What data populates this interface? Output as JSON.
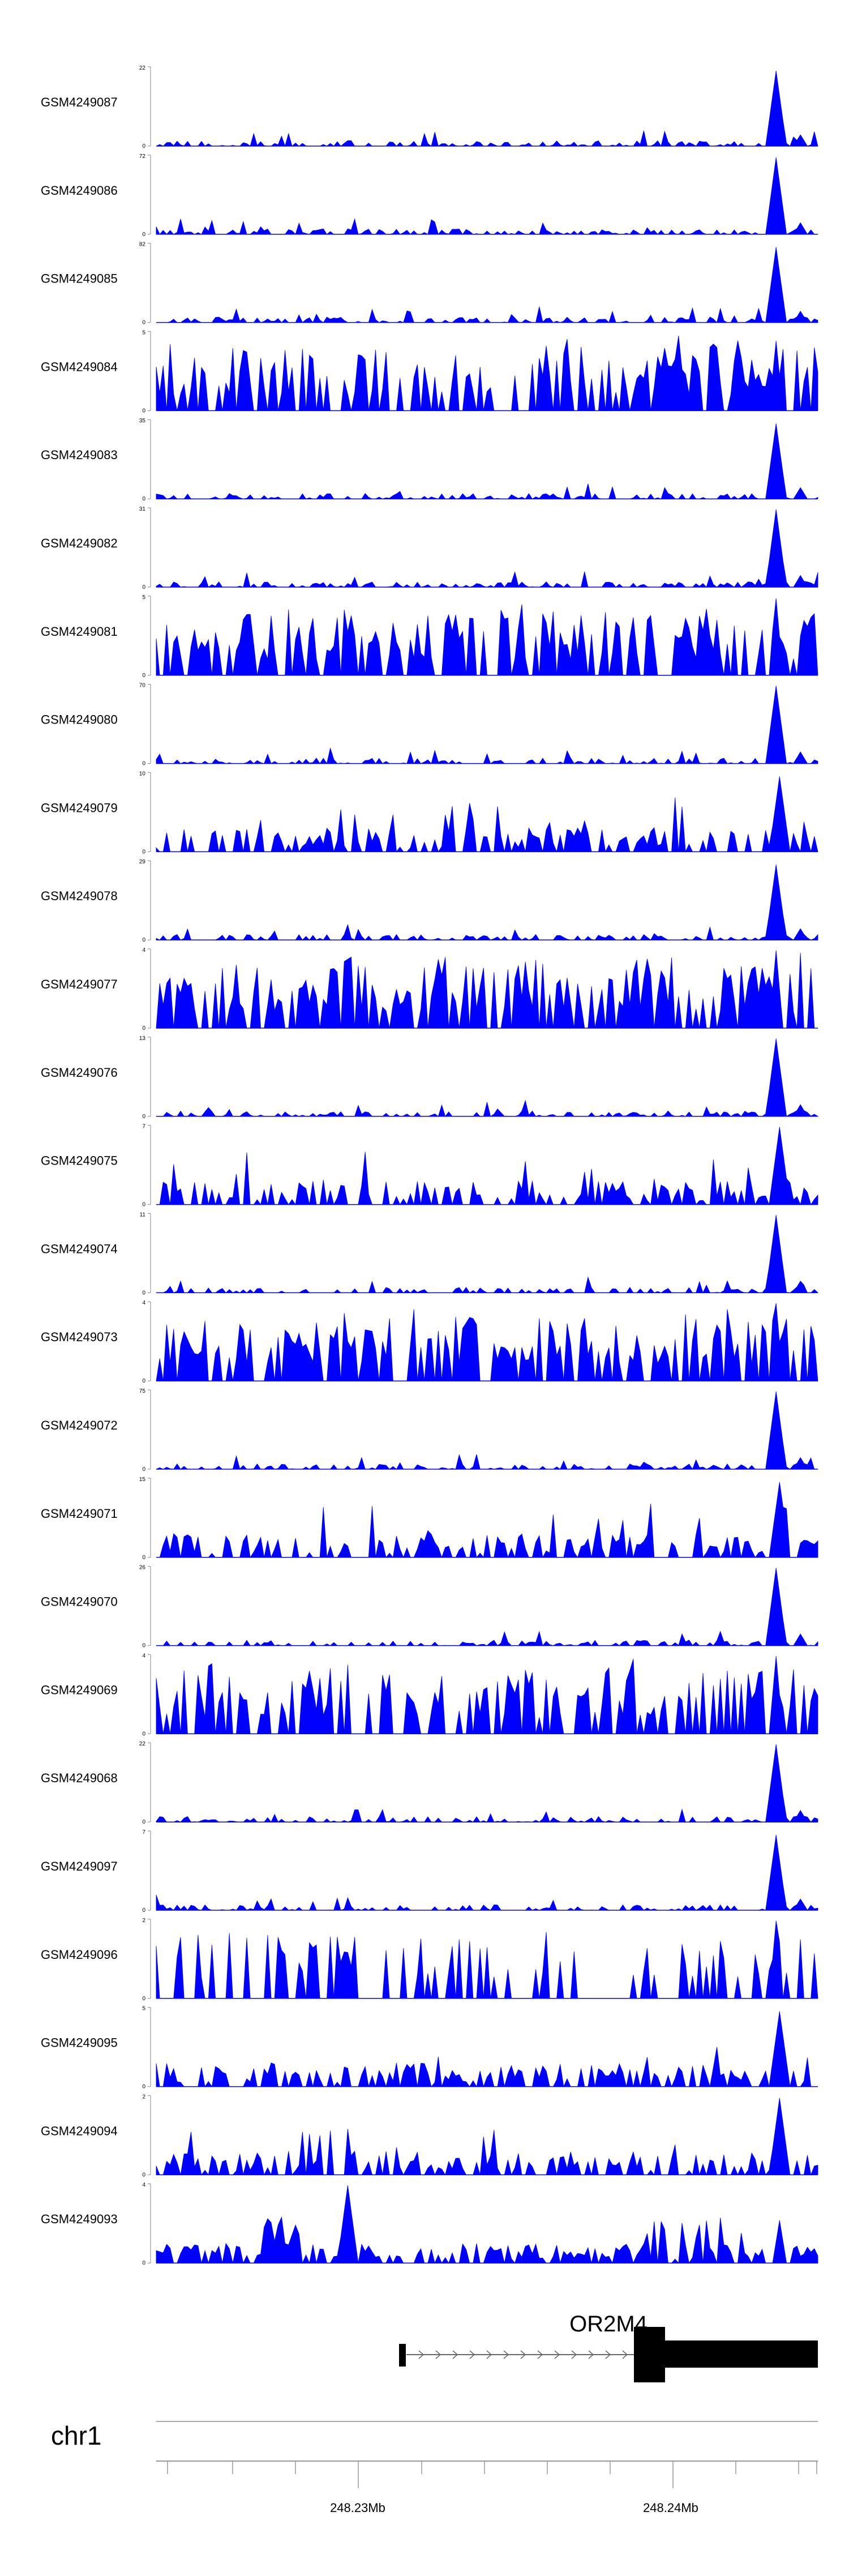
{
  "chart_data": {
    "type": "area",
    "tracks": [
      {
        "name": "GSM4249087",
        "ymax": "22",
        "ymin": "0",
        "peak_height_fraction": 0.95
      },
      {
        "name": "GSM4249086",
        "ymax": "72",
        "ymin": "0",
        "peak_height_fraction": 0.97
      },
      {
        "name": "GSM4249085",
        "ymax": "82",
        "ymin": "0",
        "peak_height_fraction": 0.95
      },
      {
        "name": "GSM4249084",
        "ymax": "5",
        "ymin": "0",
        "peak_height_fraction": 0.88
      },
      {
        "name": "GSM4249083",
        "ymax": "35",
        "ymin": "0",
        "peak_height_fraction": 0.95
      },
      {
        "name": "GSM4249082",
        "ymax": "31",
        "ymin": "0",
        "peak_height_fraction": 0.98
      },
      {
        "name": "GSM4249081",
        "ymax": "5",
        "ymin": "0",
        "peak_height_fraction": 0.97
      },
      {
        "name": "GSM4249080",
        "ymax": "70",
        "ymin": "0",
        "peak_height_fraction": 0.98
      },
      {
        "name": "GSM4249079",
        "ymax": "10",
        "ymin": "0",
        "peak_height_fraction": 0.95
      },
      {
        "name": "GSM4249078",
        "ymax": "29",
        "ymin": "0",
        "peak_height_fraction": 0.95
      },
      {
        "name": "GSM4249077",
        "ymax": "4",
        "ymin": "0",
        "peak_height_fraction": 0.98
      },
      {
        "name": "GSM4249076",
        "ymax": "13",
        "ymin": "0",
        "peak_height_fraction": 0.98
      },
      {
        "name": "GSM4249075",
        "ymax": "7",
        "ymin": "0",
        "peak_height_fraction": 0.98
      },
      {
        "name": "GSM4249074",
        "ymax": "11",
        "ymin": "0",
        "peak_height_fraction": 0.98
      },
      {
        "name": "GSM4249073",
        "ymax": "4",
        "ymin": "0",
        "peak_height_fraction": 0.98
      },
      {
        "name": "GSM4249072",
        "ymax": "75",
        "ymin": "0",
        "peak_height_fraction": 0.98
      },
      {
        "name": "GSM4249071",
        "ymax": "15",
        "ymin": "0",
        "peak_height_fraction": 0.95
      },
      {
        "name": "GSM4249070",
        "ymax": "26",
        "ymin": "0",
        "peak_height_fraction": 0.98
      },
      {
        "name": "GSM4249069",
        "ymax": "4",
        "ymin": "0",
        "peak_height_fraction": 0.98
      },
      {
        "name": "GSM4249068",
        "ymax": "22",
        "ymin": "0",
        "peak_height_fraction": 0.98
      },
      {
        "name": "GSM4249097",
        "ymax": "7",
        "ymin": "0",
        "peak_height_fraction": 0.95
      },
      {
        "name": "GSM4249096",
        "ymax": "2",
        "ymin": "0",
        "peak_height_fraction": 0.98
      },
      {
        "name": "GSM4249095",
        "ymax": "5",
        "ymin": "0",
        "peak_height_fraction": 0.95
      },
      {
        "name": "GSM4249094",
        "ymax": "2",
        "ymin": "0",
        "peak_height_fraction": 0.97
      },
      {
        "name": "GSM4249093",
        "ymax": "4",
        "ymin": "0",
        "peak_height_fraction": 0.98
      }
    ],
    "gene": {
      "name": "OR2M4"
    },
    "chromosome": "chr1",
    "x_axis": {
      "tick_labels": [
        "248.23Mb",
        "248.24Mb"
      ]
    },
    "colors": {
      "signal": "#0000ff",
      "gene": "#000000",
      "axis": "#999999"
    }
  }
}
